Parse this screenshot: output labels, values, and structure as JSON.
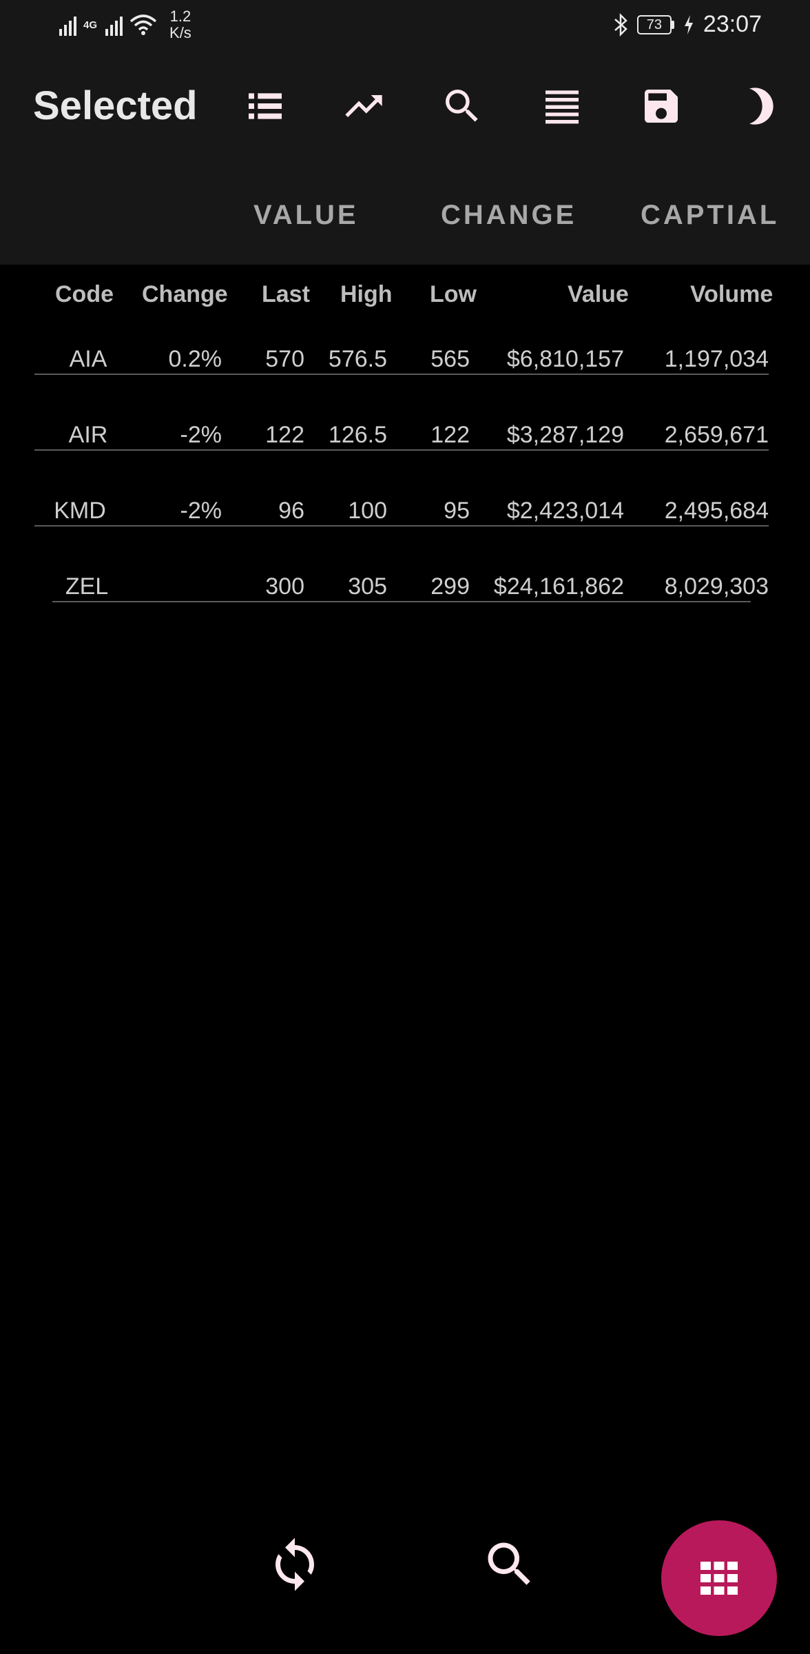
{
  "status_bar": {
    "network_label": "4G",
    "speed_value": "1.2",
    "speed_unit": "K/s",
    "battery": "73",
    "time": "23:07"
  },
  "app_bar": {
    "title": "Selected",
    "icons": [
      "list-view-icon",
      "trending-up-icon",
      "search-icon",
      "menu-lines-icon",
      "save-icon",
      "dark-mode-icon"
    ]
  },
  "tabs": [
    {
      "label": "VALUE"
    },
    {
      "label": "CHANGE"
    },
    {
      "label": "CAPTIAL"
    }
  ],
  "table": {
    "headers": {
      "code": "Code",
      "change": "Change",
      "last": "Last",
      "high": "High",
      "low": "Low",
      "value": "Value",
      "volume": "Volume"
    },
    "rows": [
      {
        "code": "AIA",
        "change": "0.2%",
        "last": "570",
        "high": "576.5",
        "low": "565",
        "value": "$6,810,157",
        "volume": "1,197,034"
      },
      {
        "code": "AIR",
        "change": "-2%",
        "last": "122",
        "high": "126.5",
        "low": "122",
        "value": "$3,287,129",
        "volume": "2,659,671"
      },
      {
        "code": "KMD",
        "change": "-2%",
        "last": "96",
        "high": "100",
        "low": "95",
        "value": "$2,423,014",
        "volume": "2,495,684"
      },
      {
        "code": "ZEL",
        "change": "",
        "last": "300",
        "high": "305",
        "low": "299",
        "value": "$24,161,862",
        "volume": "8,029,303"
      }
    ]
  },
  "bottom_bar": {
    "icons": [
      "refresh-icon",
      "search-icon",
      "grid-icon"
    ]
  },
  "colors": {
    "accent": "#b8195a",
    "bar_background": "#171717",
    "background": "#000000",
    "icon_tint": "#fde7ee"
  }
}
